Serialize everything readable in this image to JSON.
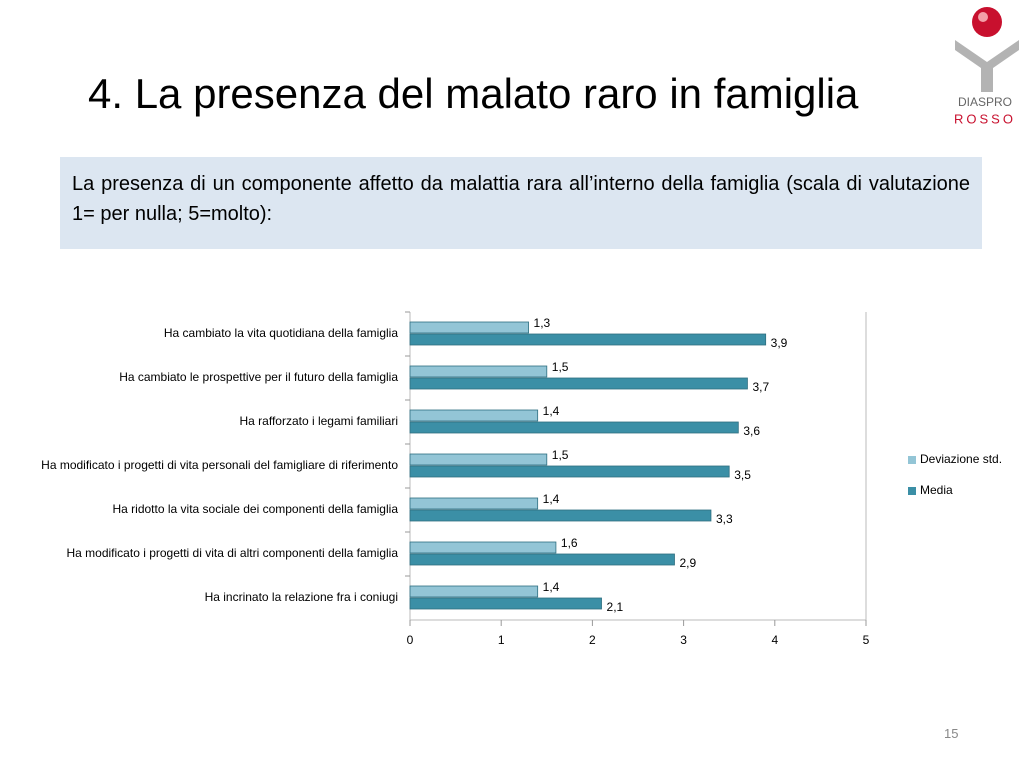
{
  "header": {
    "title": "4. La presenza del malato raro in famiglia",
    "logo_top": "DIASPRO",
    "logo_bottom": "ROSSO"
  },
  "description": "La presenza di un componente affetto da malattia rara all’interno della famiglia (scala di valutazione 1= per nulla; 5=molto):",
  "chart_data": {
    "type": "bar",
    "orientation": "horizontal",
    "categories": [
      "Ha cambiato la vita quotidiana della famiglia",
      "Ha cambiato le prospettive per il futuro della famiglia",
      "Ha rafforzato i legami familiari",
      "Ha modificato i progetti di vita personali del famigliare di riferimento",
      "Ha ridotto la vita sociale dei componenti della famiglia",
      "Ha modificato i progetti di vita di altri componenti della famiglia",
      "Ha incrinato la relazione fra i coniugi"
    ],
    "series": [
      {
        "name": "Deviazione std.",
        "color": "#93c5d6",
        "values": [
          1.3,
          1.5,
          1.4,
          1.5,
          1.4,
          1.6,
          1.4
        ],
        "value_labels": [
          "1,3",
          "1,5",
          "1,4",
          "1,5",
          "1,4",
          "1,6",
          "1,4"
        ]
      },
      {
        "name": "Media",
        "color": "#3b8fa6",
        "values": [
          3.9,
          3.7,
          3.6,
          3.5,
          3.3,
          2.9,
          2.1
        ],
        "value_labels": [
          "3,9",
          "3,7",
          "3,6",
          "3,5",
          "3,3",
          "2,9",
          "2,1"
        ]
      }
    ],
    "xlim": [
      0,
      5
    ],
    "xticks": [
      0,
      1,
      2,
      3,
      4,
      5
    ],
    "legend": "right"
  },
  "page_number": "15"
}
